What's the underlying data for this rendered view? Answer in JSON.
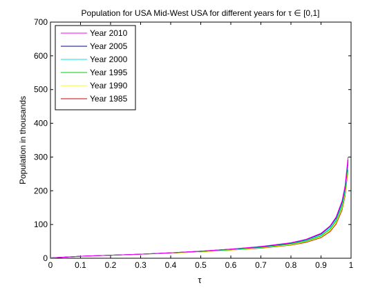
{
  "chart_data": {
    "type": "line",
    "title": "Population for USA Mid-West USA for different years for τ ∈ [0,1]",
    "xlabel": "τ",
    "ylabel": "Population in thousands",
    "xlim": [
      0,
      1
    ],
    "ylim": [
      0,
      700
    ],
    "xticks": [
      "0",
      "0.1",
      "0.2",
      "0.3",
      "0.4",
      "0.5",
      "0.6",
      "0.7",
      "0.8",
      "0.9",
      "1"
    ],
    "yticks": [
      "0",
      "100",
      "200",
      "300",
      "400",
      "500",
      "600",
      "700"
    ],
    "grid": false,
    "legend_position": "top-left",
    "x": [
      0,
      0.1,
      0.2,
      0.3,
      0.4,
      0.5,
      0.6,
      0.7,
      0.8,
      0.85,
      0.9,
      0.93,
      0.95,
      0.97,
      0.98,
      0.99
    ],
    "series": [
      {
        "name": "Year 2010",
        "color": "#ff00ff",
        "values": [
          1,
          6,
          9,
          12,
          16,
          21,
          27,
          35,
          46,
          56,
          74,
          96,
          122,
          170,
          215,
          300
        ]
      },
      {
        "name": "Year 2005",
        "color": "#000080",
        "values": [
          1,
          6,
          9,
          12,
          16,
          21,
          27,
          34,
          45,
          55,
          72,
          94,
          119,
          166,
          210,
          292
        ]
      },
      {
        "name": "Year 2000",
        "color": "#00e5e5",
        "values": [
          1,
          6,
          9,
          12,
          16,
          21,
          26,
          33,
          44,
          53,
          69,
          90,
          114,
          160,
          203,
          285
        ]
      },
      {
        "name": "Year 1995",
        "color": "#00cc00",
        "values": [
          1,
          6,
          9,
          12,
          16,
          20,
          25,
          32,
          42,
          51,
          66,
          86,
          110,
          154,
          196,
          278
        ]
      },
      {
        "name": "Year 1990",
        "color": "#ffff00",
        "values": [
          1,
          6,
          9,
          12,
          15,
          19,
          24,
          31,
          40,
          49,
          63,
          82,
          105,
          148,
          190,
          270
        ]
      },
      {
        "name": "Year 1985",
        "color": "#cc0000",
        "values": [
          1,
          6,
          9,
          12,
          15,
          19,
          24,
          30,
          39,
          47,
          61,
          79,
          101,
          143,
          185,
          262
        ]
      }
    ]
  }
}
